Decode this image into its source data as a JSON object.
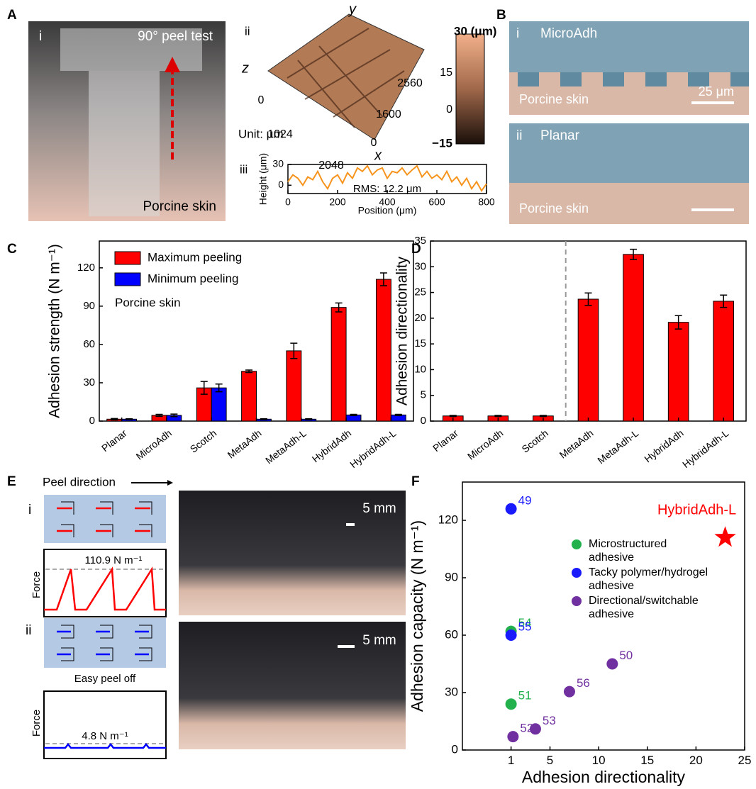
{
  "panel_labels": [
    "A",
    "B",
    "C",
    "D",
    "E",
    "F"
  ],
  "panel_a": {
    "sub_i": "i",
    "test": "90° peel test",
    "caption": "Porcine skin",
    "sub_ii": "ii",
    "axis_z": "z",
    "axis_y": "y",
    "axis_x": "x",
    "x_ticks": [
      "0",
      "1024",
      "2048"
    ],
    "y_ticks": [
      "0",
      "1600",
      "2560"
    ],
    "unit": "Unit: μm",
    "colorbar_labels": [
      "30 (μm)",
      "15",
      "0",
      "−15"
    ],
    "sub_iii": "iii"
  },
  "panel_b": {
    "sub_i": "i",
    "title_i": "MicroAdh",
    "skin_i": "Porcine skin",
    "scale": "25 μm",
    "sub_ii": "ii",
    "title_ii": "Planar",
    "skin_ii": "Porcine skin"
  },
  "panel_e": {
    "direction": "Peel direction",
    "sub_i": "i",
    "force_max": "110.9 N m⁻¹",
    "force_i": "Force",
    "scale_i": "5 mm",
    "sub_ii": "ii",
    "easy": "Easy peel off",
    "force_min": "4.8 N m⁻¹",
    "force_ii": "Force",
    "scale_ii": "5 mm"
  },
  "chart_data": [
    {
      "type": "line",
      "x_label": "Position (μm)",
      "y_label": "Height (μm)",
      "annotation": "RMS: 12.2 μm",
      "x": [
        0,
        20,
        40,
        60,
        80,
        100,
        120,
        140,
        160,
        180,
        200,
        220,
        240,
        260,
        280,
        300,
        320,
        340,
        360,
        380,
        400,
        420,
        440,
        460,
        480,
        500,
        520,
        540,
        560,
        580,
        600,
        620,
        640,
        660,
        680,
        700,
        720,
        740,
        760,
        780,
        800
      ],
      "values": [
        5,
        15,
        10,
        0,
        12,
        8,
        20,
        5,
        -5,
        10,
        15,
        3,
        18,
        10,
        25,
        20,
        28,
        15,
        22,
        25,
        10,
        20,
        18,
        25,
        15,
        22,
        28,
        12,
        20,
        10,
        15,
        8,
        20,
        5,
        12,
        0,
        10,
        -5,
        5,
        -8,
        2
      ],
      "color": "#f7941d",
      "xlim": [
        0,
        800
      ],
      "xticks": [
        0,
        200,
        400,
        600,
        800
      ],
      "ylim": [
        -12,
        30
      ],
      "yticks": [
        0,
        30
      ]
    },
    {
      "type": "bar",
      "y_label": "Adhesion strength (N m⁻¹)",
      "annotation": "Porcine skin",
      "categories": [
        "Planar",
        "MicroAdh",
        "Scotch",
        "MetaAdh",
        "MetaAdh-L",
        "HybridAdh",
        "HybridAdh-L"
      ],
      "series": [
        {
          "name": "Maximum peeling",
          "color": "#ff0000",
          "values": [
            1.5,
            4.5,
            26,
            39,
            55,
            89,
            111
          ],
          "errors": [
            0.5,
            0.8,
            5,
            1,
            6,
            3.5,
            5
          ]
        },
        {
          "name": "Minimum peeling",
          "color": "#0000ff",
          "values": [
            1.5,
            4.5,
            26,
            1.5,
            1.5,
            4.8,
            4.8
          ],
          "errors": [
            0.3,
            1,
            3,
            0.3,
            0.3,
            0.5,
            0.5
          ]
        }
      ],
      "ylim": [
        0,
        141
      ],
      "yticks": [
        0,
        30,
        60,
        90,
        120
      ]
    },
    {
      "type": "bar",
      "y_label": "Adhesion directionality",
      "categories": [
        "Planar",
        "MicroAdh",
        "Scotch",
        "MetaAdh",
        "MetaAdh-L",
        "HybridAdh",
        "HybridAdh-L"
      ],
      "series": [
        {
          "color": "#ff0000",
          "values": [
            1,
            1,
            1,
            23.7,
            32.4,
            19.2,
            23.3
          ],
          "errors": [
            0.1,
            0.1,
            0.1,
            1.2,
            1,
            1.3,
            1.2
          ]
        }
      ],
      "ylim": [
        0,
        35
      ],
      "yticks": [
        0,
        5,
        10,
        15,
        20,
        25,
        30,
        35
      ]
    },
    {
      "type": "scatter",
      "x_label": "Adhesion directionality",
      "y_label": "Adhesion capacity (N m⁻¹)",
      "series": [
        {
          "name": "Microstructured adhesive",
          "color": "#22b14c",
          "x": [
            1,
            1
          ],
          "values": [
            62,
            24
          ],
          "labels": [
            "54",
            "51"
          ]
        },
        {
          "name": "Tacky polymer/hydrogel adhesive",
          "color": "#1a1aff",
          "x": [
            1,
            1
          ],
          "values": [
            126,
            60
          ],
          "labels": [
            "49",
            "55"
          ]
        },
        {
          "name": "Directional/switchable adhesive",
          "color": "#7030a0",
          "x": [
            1.2,
            3.5,
            7,
            11.4
          ],
          "values": [
            7,
            11,
            30.5,
            45
          ],
          "labels": [
            "52",
            "53",
            "56",
            "50"
          ]
        },
        {
          "name": "HybridAdh-L",
          "color": "#ff0000",
          "marker": "star",
          "x": [
            23
          ],
          "values": [
            111
          ]
        }
      ],
      "xlim": [
        -4,
        25
      ],
      "xticks": [
        1,
        5,
        10,
        15,
        20,
        25
      ],
      "ylim": [
        0,
        140
      ],
      "yticks": [
        0,
        30,
        60,
        90,
        120
      ]
    }
  ]
}
